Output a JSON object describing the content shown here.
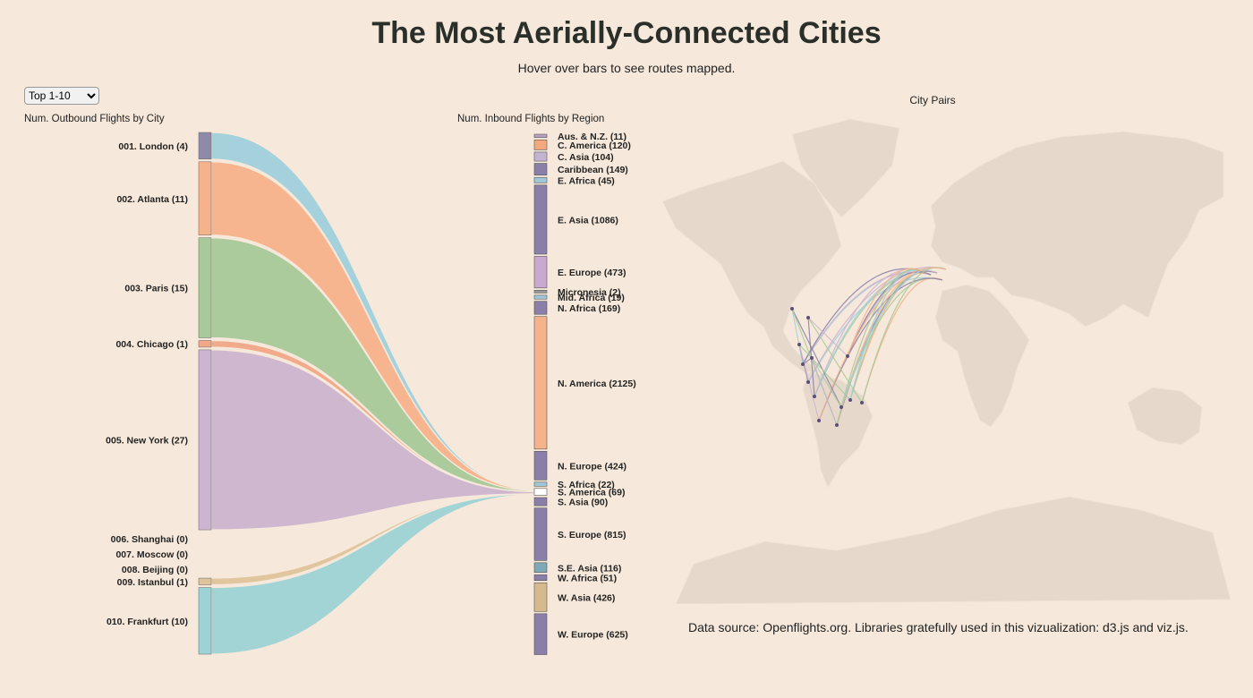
{
  "page": {
    "title": "The Most Aerially-Connected Cities",
    "subtitle": "Hover over bars to see routes mapped.",
    "select": {
      "selected": "Top 1-10",
      "options": [
        "Top 1-10"
      ]
    },
    "data_source": "Data source: Openflights.org. Libraries gratefully used in this vizualization: d3.js and viz.js."
  },
  "chart_data": [
    {
      "type": "sankey",
      "left_header": "Num. Outbound Flights by City",
      "right_header": "Num. Inbound Flights by Region",
      "cities": [
        {
          "label": "001. London (4)",
          "value": 4,
          "color": "#8e8aa8"
        },
        {
          "label": "002. Atlanta (11)",
          "value": 11,
          "color": "#f6b28a"
        },
        {
          "label": "003. Paris (15)",
          "value": 15,
          "color": "#a8c999"
        },
        {
          "label": "004. Chicago (1)",
          "value": 1,
          "color": "#f0a886"
        },
        {
          "label": "005. New York (27)",
          "value": 27,
          "color": "#cdb4d0"
        },
        {
          "label": "006. Shanghai (0)",
          "value": 0,
          "color": "#cccccc"
        },
        {
          "label": "007. Moscow (0)",
          "value": 0,
          "color": "#cccccc"
        },
        {
          "label": "008. Beijing (0)",
          "value": 0,
          "color": "#cccccc"
        },
        {
          "label": "009. Istanbul (1)",
          "value": 1,
          "color": "#dfc39c"
        },
        {
          "label": "010. Frankfurt (10)",
          "value": 10,
          "color": "#9dd3d6"
        }
      ],
      "flows": [
        {
          "from": "001. London (4)",
          "to": "S. America (69)",
          "color": "#9fd0dc"
        },
        {
          "from": "002. Atlanta (11)",
          "to": "S. America (69)",
          "color": "#f6b28a"
        },
        {
          "from": "003. Paris (15)",
          "to": "S. America (69)",
          "color": "#a8c999"
        },
        {
          "from": "004. Chicago (1)",
          "to": "S. America (69)",
          "color": "#f0a886"
        },
        {
          "from": "005. New York (27)",
          "to": "S. America (69)",
          "color": "#cdb4d0"
        },
        {
          "from": "009. Istanbul (1)",
          "to": "S. America (69)",
          "color": "#dfc39c"
        },
        {
          "from": "010. Frankfurt (10)",
          "to": "S. America (69)",
          "color": "#9dd3d6"
        }
      ],
      "regions": [
        {
          "label": "Aus. & N.Z. (11)",
          "value": 11,
          "color": "#b9a0c0"
        },
        {
          "label": "C. America (120)",
          "value": 120,
          "color": "#f3a97e"
        },
        {
          "label": "C. Asia (104)",
          "value": 104,
          "color": "#c5b3d2"
        },
        {
          "label": "Caribbean (149)",
          "value": 149,
          "color": "#8a7fa8"
        },
        {
          "label": "E. Africa (45)",
          "value": 45,
          "color": "#9fc7d8"
        },
        {
          "label": "E. Asia (1086)",
          "value": 1086,
          "color": "#8a7fa8"
        },
        {
          "label": "E. Europe (473)",
          "value": 473,
          "color": "#c9a9d0"
        },
        {
          "label": "Micronesia (2)",
          "value": 2,
          "color": "#999999"
        },
        {
          "label": "Mid. Africa (19)",
          "value": 19,
          "color": "#9fc7d8"
        },
        {
          "label": "N. Africa (169)",
          "value": 169,
          "color": "#8a7fa8"
        },
        {
          "label": "N. America (2125)",
          "value": 2125,
          "color": "#f6b28a"
        },
        {
          "label": "N. Europe (424)",
          "value": 424,
          "color": "#8a7fa8"
        },
        {
          "label": "S. Africa (22)",
          "value": 22,
          "color": "#9fc7d8"
        },
        {
          "label": "S. America (69)",
          "value": 69,
          "color": "#ffffff"
        },
        {
          "label": "S. Asia (90)",
          "value": 90,
          "color": "#8a7fa8"
        },
        {
          "label": "S. Europe (815)",
          "value": 815,
          "color": "#8a7fa8"
        },
        {
          "label": "S.E. Asia (116)",
          "value": 116,
          "color": "#7fa8b8"
        },
        {
          "label": "W. Africa (51)",
          "value": 51,
          "color": "#8a7fa8"
        },
        {
          "label": "W. Asia (426)",
          "value": 426,
          "color": "#d6b98c"
        },
        {
          "label": "W. Europe (625)",
          "value": 625,
          "color": "#8a7fa8"
        }
      ]
    },
    {
      "type": "map",
      "title": "City Pairs",
      "route_colors": [
        "#9fd0dc",
        "#a8c999",
        "#f6b28a",
        "#8a7fa8",
        "#cdb4d0"
      ]
    }
  ]
}
